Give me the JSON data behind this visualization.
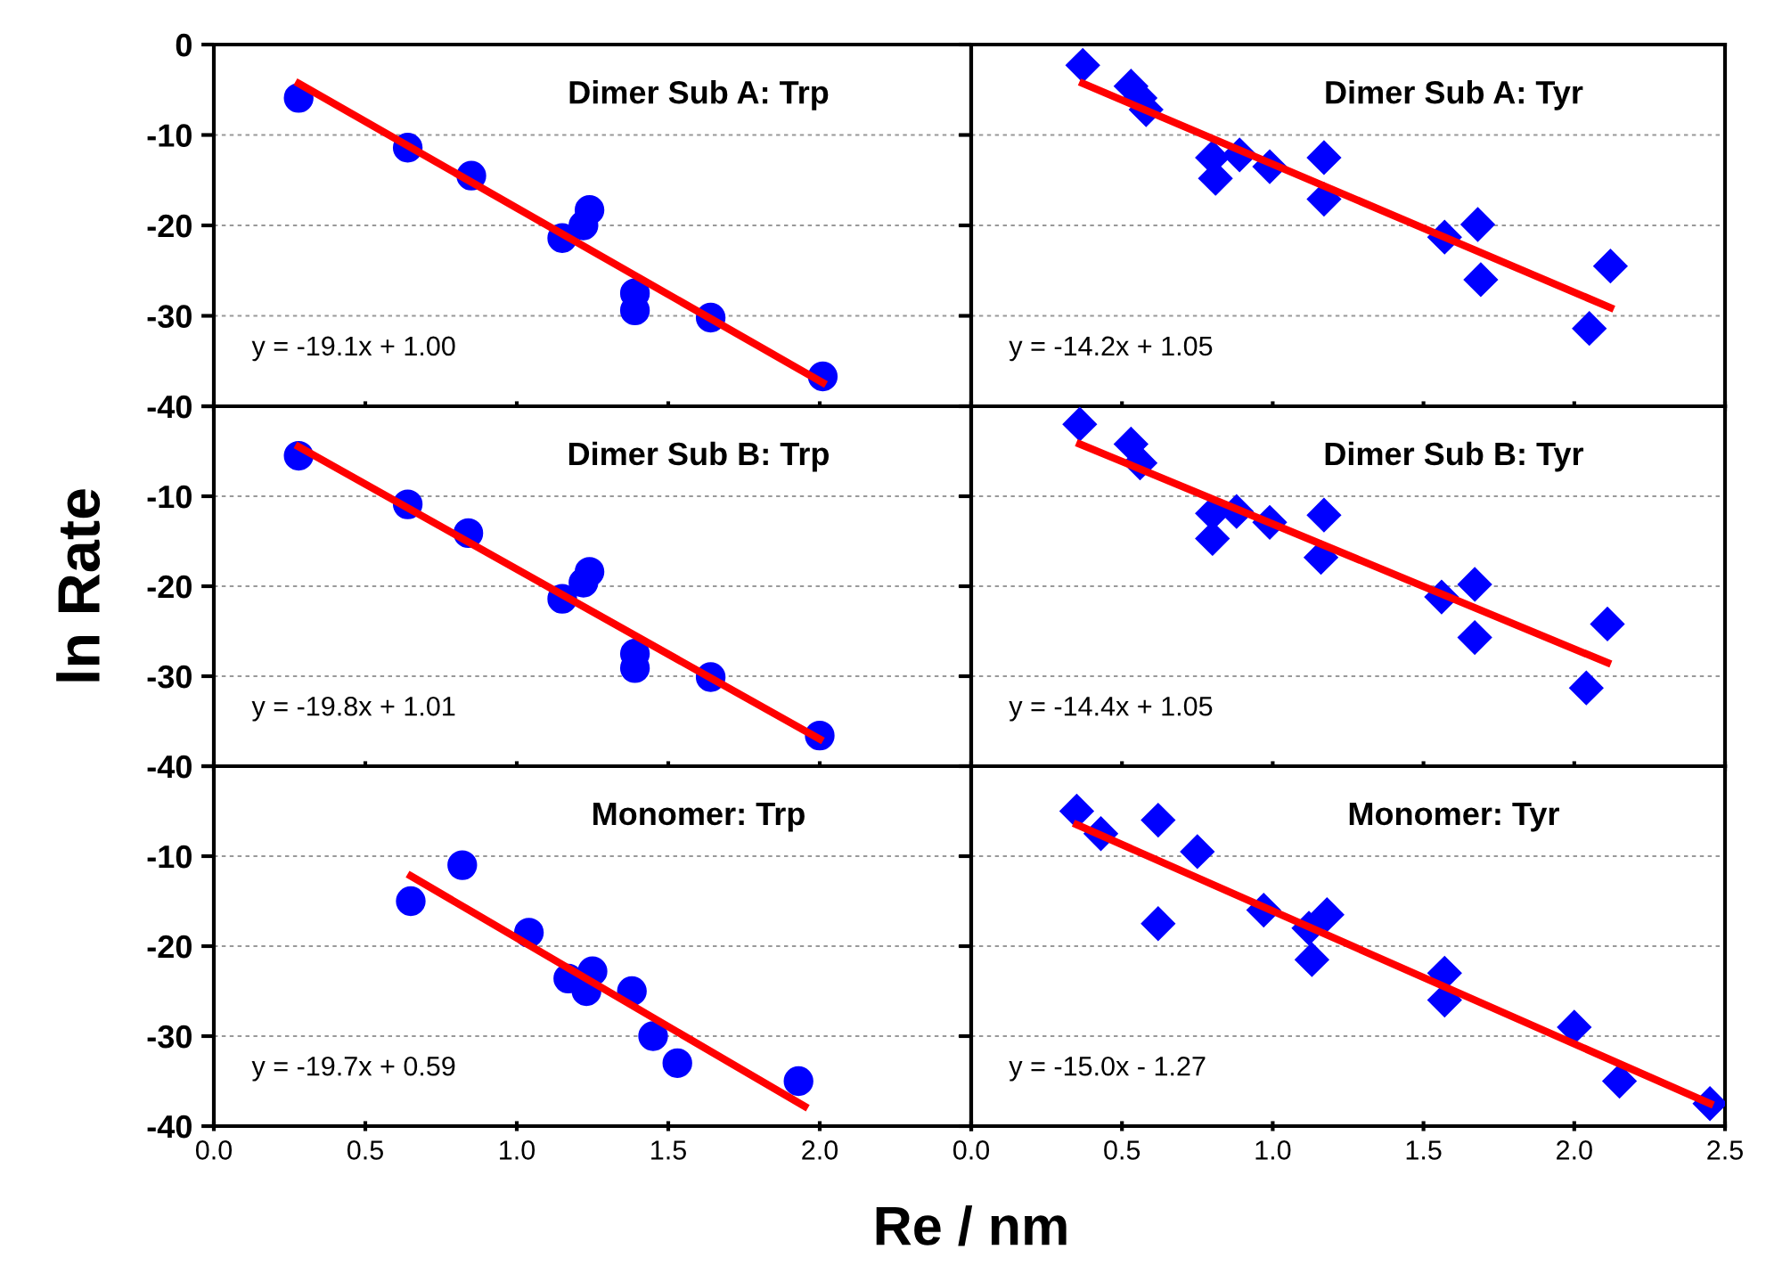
{
  "chart_data": [
    {
      "type": "scatter",
      "title": "Dimer Sub A: Trp",
      "xlim": [
        0,
        2.5
      ],
      "xticks": [
        0,
        0.5,
        1,
        1.5,
        2,
        2.5
      ],
      "ylim": [
        -40,
        0
      ],
      "yticks": [
        -40,
        -30,
        -20,
        -10,
        0
      ],
      "grid": "y",
      "tick_labels": "y",
      "annotations": [
        "y = -19.1x + 1.00"
      ],
      "series": [
        {
          "color": "#0000ff",
          "marker": "circle",
          "x": [
            0.28,
            0.64,
            0.85,
            1.15,
            1.22,
            1.24,
            1.39,
            1.39,
            1.64,
            2.01
          ],
          "values": [
            -5.9,
            -11.4,
            -14.5,
            -21.4,
            -20,
            -18.3,
            -27.5,
            -29.4,
            -30.2,
            -36.7
          ]
        },
        {
          "type": "line",
          "color": "#ff0000",
          "x": [
            0.28,
            2.01
          ],
          "values": [
            -4.3,
            -37.4
          ]
        }
      ]
    },
    {
      "type": "scatter",
      "title": "Dimer Sub A: Tyr",
      "xlim": [
        0,
        2.5
      ],
      "xticks": [
        0,
        0.5,
        1,
        1.5,
        2,
        2.5
      ],
      "ylim": [
        -40,
        0
      ],
      "yticks": [
        -40,
        -30,
        -20,
        -10,
        0
      ],
      "grid": "y",
      "tick_labels": false,
      "annotations": [
        "y = -14.2x + 1.05"
      ],
      "series": [
        {
          "color": "#0000ff",
          "marker": "diamond",
          "x": [
            0.37,
            0.53,
            0.56,
            0.58,
            0.8,
            0.81,
            0.89,
            0.99,
            1.17,
            1.17,
            1.57,
            1.68,
            1.69,
            2.12,
            2.05
          ],
          "values": [
            -2.3,
            -4.6,
            -5.9,
            -7.2,
            -12.5,
            -14.8,
            -12.2,
            -13.5,
            -12.5,
            -17.1,
            -21.3,
            -19.9,
            -26,
            -24.5,
            -31.4
          ]
        },
        {
          "type": "line",
          "color": "#ff0000",
          "x": [
            0.37,
            2.12
          ],
          "values": [
            -4.3,
            -29.1
          ]
        }
      ]
    },
    {
      "type": "scatter",
      "title": "Dimer Sub B: Trp",
      "ylabel": "ln Rate",
      "xlim": [
        0,
        2.5
      ],
      "xticks": [
        0,
        0.5,
        1,
        1.5,
        2,
        2.5
      ],
      "ylim": [
        -40,
        0
      ],
      "yticks": [
        -40,
        -30,
        -20,
        -10,
        {
          "value": 0,
          "label": null
        }
      ],
      "grid": "y",
      "tick_labels": "y",
      "annotations": [
        "y = -19.8x + 1.01"
      ],
      "series": [
        {
          "color": "#0000ff",
          "marker": "circle",
          "x": [
            0.28,
            0.64,
            0.84,
            1.15,
            1.22,
            1.24,
            1.39,
            1.39,
            1.64,
            2.0
          ],
          "values": [
            -5.5,
            -10.9,
            -14.1,
            -21.4,
            -19.6,
            -18.4,
            -27.5,
            -29.1,
            -30.1,
            -36.6
          ]
        },
        {
          "type": "line",
          "color": "#ff0000",
          "x": [
            0.28,
            2.0
          ],
          "values": [
            -4.5,
            -37
          ]
        }
      ]
    },
    {
      "type": "scatter",
      "title": "Dimer Sub B: Tyr",
      "xlim": [
        0,
        2.5
      ],
      "xticks": [
        0,
        0.5,
        1,
        1.5,
        2,
        2.5
      ],
      "ylim": [
        -40,
        0
      ],
      "yticks": [
        -40,
        -30,
        -20,
        -10,
        0
      ],
      "grid": "y",
      "tick_labels": false,
      "annotations": [
        "y = -14.4x + 1.05"
      ],
      "series": [
        {
          "color": "#0000ff",
          "marker": "diamond",
          "x": [
            0.36,
            0.53,
            0.56,
            0.8,
            0.8,
            0.88,
            0.99,
            1.17,
            1.16,
            1.56,
            1.67,
            1.67,
            2.11,
            2.04
          ],
          "values": [
            -2,
            -4.2,
            -6.3,
            -11.9,
            -14.7,
            -11.7,
            -12.9,
            -12.1,
            -16.8,
            -21.2,
            -19.8,
            -25.7,
            -24.2,
            -31.3
          ]
        },
        {
          "type": "line",
          "color": "#ff0000",
          "x": [
            0.36,
            2.11
          ],
          "values": [
            -4.2,
            -28.5
          ]
        }
      ]
    },
    {
      "type": "scatter",
      "title": "Monomer: Trp",
      "xlabel": "Re / nm",
      "xlim": [
        0,
        2.5
      ],
      "xticks": [
        {
          "value": 0,
          "label": "0.0"
        },
        {
          "value": 0.5,
          "label": "0.5"
        },
        {
          "value": 1,
          "label": "1.0"
        },
        {
          "value": 1.5,
          "label": "1.5"
        },
        {
          "value": 2,
          "label": "2.0"
        },
        {
          "value": 2.5,
          "label": null
        }
      ],
      "ylim": [
        -40,
        0
      ],
      "yticks": [
        -40,
        -30,
        -20,
        -10,
        {
          "value": 0,
          "label": null
        }
      ],
      "grid": "y",
      "annotations": [
        "y = -19.7x + 0.59"
      ],
      "series": [
        {
          "color": "#0000ff",
          "marker": "circle",
          "x": [
            0.65,
            0.82,
            1.04,
            1.17,
            1.23,
            1.25,
            1.38,
            1.45,
            1.53,
            1.93
          ],
          "values": [
            -15,
            -11,
            -18.5,
            -23.6,
            -25,
            -22.8,
            -25,
            -30,
            -33,
            -35
          ]
        },
        {
          "type": "line",
          "color": "#ff0000",
          "x": [
            0.65,
            1.95
          ],
          "values": [
            -12.2,
            -37.8
          ]
        }
      ]
    },
    {
      "type": "scatter",
      "title": "Monomer: Tyr",
      "xlim": [
        0,
        2.5
      ],
      "xticks": [
        {
          "value": 0,
          "label": "0.0"
        },
        {
          "value": 0.5,
          "label": "0.5"
        },
        {
          "value": 1,
          "label": "1.0"
        },
        {
          "value": 1.5,
          "label": "1.5"
        },
        {
          "value": 2,
          "label": "2.0"
        },
        {
          "value": 2.5,
          "label": "2.5"
        }
      ],
      "ylim": [
        -40,
        0
      ],
      "yticks": [
        -40,
        -30,
        -20,
        -10,
        0
      ],
      "grid": "y",
      "tick_labels": "x",
      "annotations": [
        "y = -15.0x - 1.27"
      ],
      "series": [
        {
          "color": "#0000ff",
          "marker": "diamond",
          "x": [
            0.35,
            0.43,
            0.62,
            0.62,
            0.75,
            0.97,
            1.12,
            1.13,
            1.18,
            1.57,
            1.57,
            2.0,
            2.15,
            2.45
          ],
          "values": [
            -5,
            -7.5,
            -6,
            -17.5,
            -9.5,
            -16,
            -18,
            -21.5,
            -16.5,
            -23,
            -26,
            -29,
            -35,
            -37.5
          ]
        },
        {
          "type": "line",
          "color": "#ff0000",
          "x": [
            0.35,
            2.45
          ],
          "values": [
            -6.5,
            -37.5
          ]
        }
      ]
    }
  ]
}
